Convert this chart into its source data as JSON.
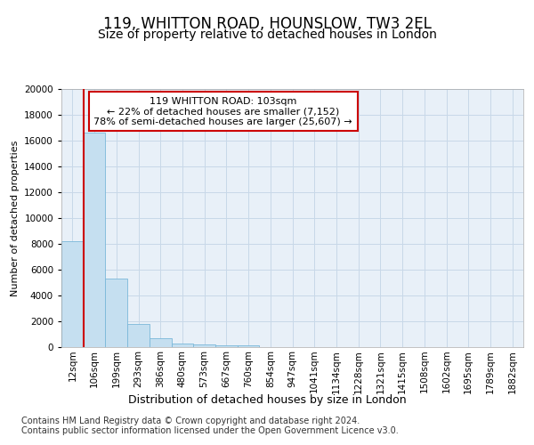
{
  "title1": "119, WHITTON ROAD, HOUNSLOW, TW3 2EL",
  "title2": "Size of property relative to detached houses in London",
  "xlabel": "Distribution of detached houses by size in London",
  "ylabel": "Number of detached properties",
  "bar_labels": [
    "12sqm",
    "106sqm",
    "199sqm",
    "293sqm",
    "386sqm",
    "480sqm",
    "573sqm",
    "667sqm",
    "760sqm",
    "854sqm",
    "947sqm",
    "1041sqm",
    "1134sqm",
    "1228sqm",
    "1321sqm",
    "1415sqm",
    "1508sqm",
    "1602sqm",
    "1695sqm",
    "1789sqm",
    "1882sqm"
  ],
  "bar_values": [
    8200,
    16600,
    5300,
    1800,
    700,
    280,
    200,
    160,
    130,
    0,
    0,
    0,
    0,
    0,
    0,
    0,
    0,
    0,
    0,
    0,
    0
  ],
  "bar_color": "#c5dff0",
  "bar_edge_color": "#7ab8d9",
  "ylim": [
    0,
    20000
  ],
  "yticks": [
    0,
    2000,
    4000,
    6000,
    8000,
    10000,
    12000,
    14000,
    16000,
    18000,
    20000
  ],
  "annotation_text": "119 WHITTON ROAD: 103sqm\n← 22% of detached houses are smaller (7,152)\n78% of semi-detached houses are larger (25,607) →",
  "annotation_box_color": "#ffffff",
  "annotation_box_edge": "#cc0000",
  "line_color": "#cc0000",
  "grid_color": "#c8d8e8",
  "footer_text": "Contains HM Land Registry data © Crown copyright and database right 2024.\nContains public sector information licensed under the Open Government Licence v3.0.",
  "background_color": "#ffffff",
  "plot_bg_color": "#e8f0f8",
  "title1_fontsize": 12,
  "title2_fontsize": 10,
  "xlabel_fontsize": 9,
  "ylabel_fontsize": 8,
  "tick_fontsize": 7.5,
  "footer_fontsize": 7
}
